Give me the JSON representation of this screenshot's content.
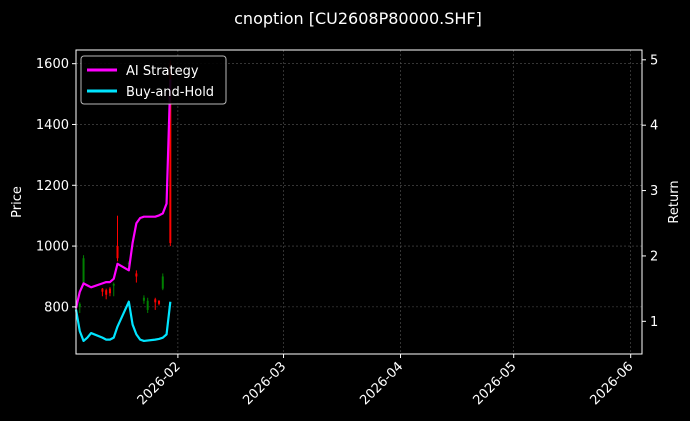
{
  "chart_data": {
    "type": "line",
    "title": "cnoption [CU2608P80000.SHF]",
    "xlabel": "",
    "ylabel": "Price",
    "y2label": "Return",
    "x_range": [
      "2026-01-05",
      "2026-06-04"
    ],
    "ylim": [
      645,
      1645
    ],
    "y2lim": [
      0.5,
      5.15
    ],
    "y_ticks": [
      800,
      1000,
      1200,
      1400,
      1600
    ],
    "y2_ticks": [
      1,
      2,
      3,
      4,
      5
    ],
    "x_ticks": [
      "2026-02",
      "2026-03",
      "2026-04",
      "2026-05",
      "2026-06"
    ],
    "grid": true,
    "legend_position": "top-left",
    "background": "#000000",
    "colors": {
      "up": "#008000",
      "down": "#ff0000",
      "strategy": "#ff00ff",
      "buy_hold": "#00e5ff",
      "grid": "#555555",
      "axis": "#ffffff"
    },
    "candles": [
      {
        "date": "2026-01-06",
        "open": 800,
        "close": 810,
        "high": 815,
        "low": 780
      },
      {
        "date": "2026-01-07",
        "open": 880,
        "close": 960,
        "high": 970,
        "low": 875
      },
      {
        "date": "2026-01-12",
        "open": 860,
        "close": 850,
        "high": 862,
        "low": 835
      },
      {
        "date": "2026-01-13",
        "open": 855,
        "close": 840,
        "high": 860,
        "low": 825
      },
      {
        "date": "2026-01-14",
        "open": 860,
        "close": 845,
        "high": 865,
        "low": 835
      },
      {
        "date": "2026-01-15",
        "open": 870,
        "close": 875,
        "high": 880,
        "low": 835
      },
      {
        "date": "2026-01-16",
        "open": 1000,
        "close": 960,
        "high": 1100,
        "low": 950
      },
      {
        "date": "2026-01-19",
        "open": 940,
        "close": 945,
        "high": 950,
        "low": 930
      },
      {
        "date": "2026-01-21",
        "open": 910,
        "close": 900,
        "high": 920,
        "low": 880
      },
      {
        "date": "2026-01-23",
        "open": 820,
        "close": 830,
        "high": 838,
        "low": 810
      },
      {
        "date": "2026-01-24",
        "open": 790,
        "close": 820,
        "high": 830,
        "low": 780
      },
      {
        "date": "2026-01-26",
        "open": 825,
        "close": 815,
        "high": 830,
        "low": 790
      },
      {
        "date": "2026-01-27",
        "open": 820,
        "close": 810,
        "high": 822,
        "low": 805
      },
      {
        "date": "2026-01-28",
        "open": 860,
        "close": 900,
        "high": 910,
        "low": 855
      },
      {
        "date": "2026-01-30",
        "open": 1600,
        "close": 1010,
        "high": 1610,
        "low": 1000
      }
    ],
    "series": [
      {
        "name": "AI Strategy",
        "axis": "right",
        "x": [
          "2026-01-05",
          "2026-01-06",
          "2026-01-07",
          "2026-01-08",
          "2026-01-09",
          "2026-01-12",
          "2026-01-13",
          "2026-01-14",
          "2026-01-15",
          "2026-01-16",
          "2026-01-19",
          "2026-01-20",
          "2026-01-21",
          "2026-01-22",
          "2026-01-23",
          "2026-01-26",
          "2026-01-27",
          "2026-01-28",
          "2026-01-29",
          "2026-01-30"
        ],
        "values": [
          1.2,
          1.45,
          1.58,
          1.55,
          1.52,
          1.58,
          1.6,
          1.6,
          1.65,
          1.88,
          1.78,
          2.2,
          2.5,
          2.58,
          2.6,
          2.6,
          2.62,
          2.65,
          2.8,
          4.7
        ]
      },
      {
        "name": "Buy-and-Hold",
        "axis": "right",
        "x": [
          "2026-01-05",
          "2026-01-06",
          "2026-01-07",
          "2026-01-08",
          "2026-01-09",
          "2026-01-12",
          "2026-01-13",
          "2026-01-14",
          "2026-01-15",
          "2026-01-16",
          "2026-01-19",
          "2026-01-20",
          "2026-01-21",
          "2026-01-22",
          "2026-01-23",
          "2026-01-26",
          "2026-01-27",
          "2026-01-28",
          "2026-01-29",
          "2026-01-30"
        ],
        "values": [
          1.18,
          0.85,
          0.7,
          0.75,
          0.82,
          0.75,
          0.72,
          0.72,
          0.75,
          0.92,
          1.3,
          0.95,
          0.8,
          0.72,
          0.7,
          0.72,
          0.73,
          0.75,
          0.8,
          1.3
        ]
      }
    ]
  }
}
